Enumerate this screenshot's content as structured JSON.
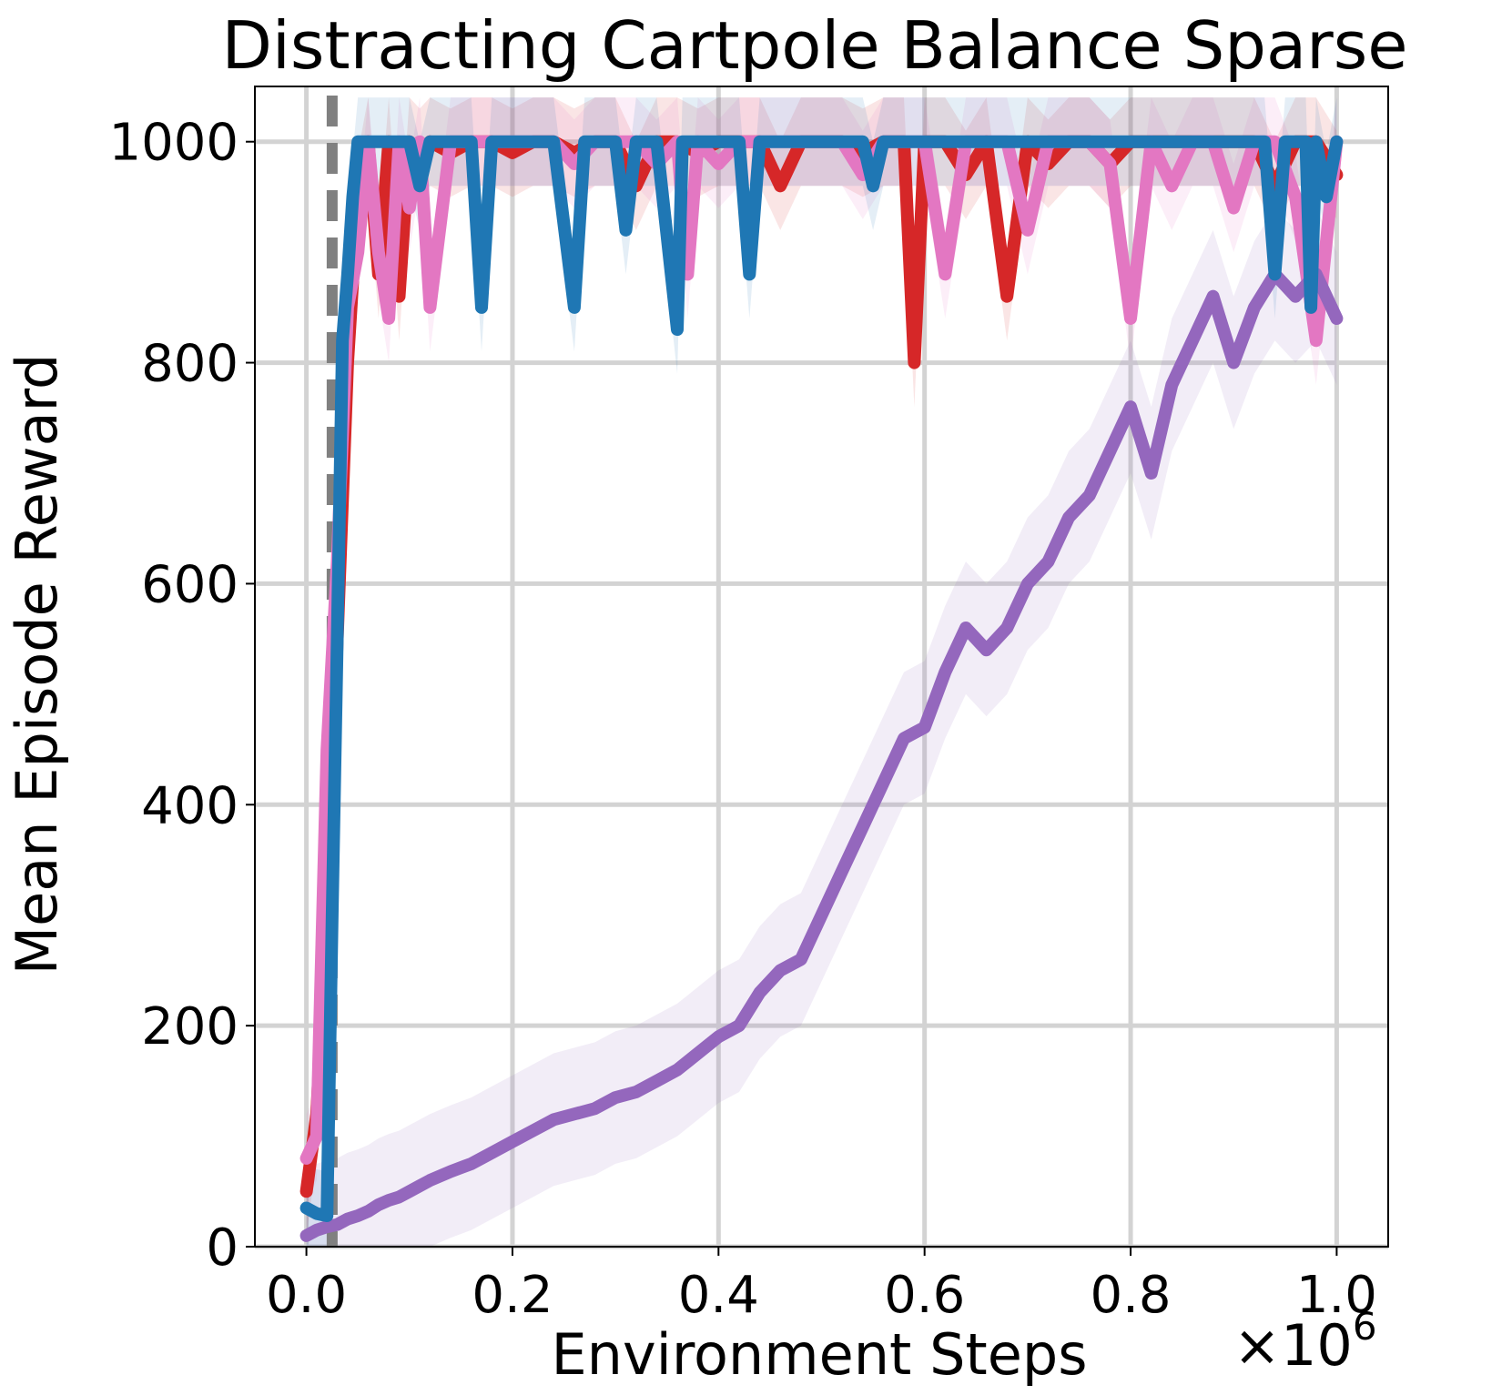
{
  "chart_data": {
    "type": "line",
    "title": "Distracting Cartpole Balance Sparse",
    "xlabel": "Environment Steps",
    "ylabel": "Mean Episode Reward",
    "x_multiplier_label": "×10",
    "x_multiplier_exponent": "6",
    "xlim": [
      -0.05,
      1.05
    ],
    "ylim": [
      0,
      1050
    ],
    "x_ticks": [
      0.0,
      0.2,
      0.4,
      0.6,
      0.8,
      1.0
    ],
    "x_tick_labels": [
      "0.0",
      "0.2",
      "0.4",
      "0.6",
      "0.8",
      "1.0"
    ],
    "y_ticks": [
      0,
      200,
      400,
      600,
      800,
      1000
    ],
    "y_tick_labels": [
      "0",
      "200",
      "400",
      "600",
      "800",
      "1000"
    ],
    "grid": true,
    "vline": {
      "x": 0.025,
      "style": "dashed",
      "color": "#808080"
    },
    "series": [
      {
        "color": "#d62728",
        "x": [
          0.0,
          0.01,
          0.02,
          0.03,
          0.04,
          0.05,
          0.06,
          0.07,
          0.08,
          0.09,
          0.1,
          0.11,
          0.12,
          0.14,
          0.16,
          0.18,
          0.2,
          0.22,
          0.24,
          0.26,
          0.28,
          0.3,
          0.32,
          0.34,
          0.36,
          0.38,
          0.4,
          0.42,
          0.44,
          0.46,
          0.48,
          0.5,
          0.52,
          0.54,
          0.56,
          0.58,
          0.59,
          0.6,
          0.62,
          0.64,
          0.66,
          0.68,
          0.7,
          0.72,
          0.74,
          0.76,
          0.78,
          0.8,
          0.82,
          0.84,
          0.86,
          0.88,
          0.9,
          0.92,
          0.94,
          0.96,
          0.98,
          1.0
        ],
        "y": [
          50,
          120,
          300,
          550,
          800,
          950,
          1000,
          880,
          1000,
          860,
          1000,
          990,
          1000,
          990,
          1000,
          1000,
          990,
          1000,
          1000,
          990,
          1000,
          1000,
          960,
          1000,
          1000,
          990,
          1000,
          1000,
          1000,
          960,
          1000,
          1000,
          1000,
          990,
          1000,
          1000,
          800,
          1000,
          1000,
          970,
          1000,
          860,
          1000,
          980,
          1000,
          1000,
          980,
          1000,
          1000,
          1000,
          1000,
          1000,
          1000,
          1000,
          960,
          1000,
          1000,
          970
        ]
      },
      {
        "color": "#e377c2",
        "x": [
          0.0,
          0.01,
          0.02,
          0.03,
          0.04,
          0.05,
          0.06,
          0.07,
          0.08,
          0.09,
          0.1,
          0.11,
          0.12,
          0.14,
          0.16,
          0.18,
          0.2,
          0.22,
          0.24,
          0.26,
          0.28,
          0.3,
          0.32,
          0.34,
          0.36,
          0.37,
          0.38,
          0.4,
          0.42,
          0.44,
          0.46,
          0.48,
          0.5,
          0.52,
          0.54,
          0.56,
          0.58,
          0.6,
          0.62,
          0.64,
          0.66,
          0.68,
          0.7,
          0.72,
          0.74,
          0.76,
          0.78,
          0.8,
          0.82,
          0.84,
          0.86,
          0.88,
          0.9,
          0.92,
          0.94,
          0.96,
          0.98,
          1.0
        ],
        "y": [
          80,
          100,
          450,
          620,
          850,
          900,
          1000,
          900,
          840,
          1000,
          940,
          1000,
          850,
          1000,
          1000,
          1000,
          1000,
          1000,
          1000,
          980,
          1000,
          1000,
          1000,
          980,
          1000,
          880,
          1000,
          980,
          1000,
          1000,
          1000,
          1000,
          1000,
          1000,
          970,
          1000,
          1000,
          1000,
          880,
          1000,
          1000,
          1000,
          920,
          1000,
          1000,
          1000,
          980,
          840,
          1000,
          960,
          1000,
          1000,
          940,
          1000,
          1000,
          950,
          820,
          1000
        ]
      },
      {
        "color": "#9467bd",
        "x": [
          0.0,
          0.01,
          0.02,
          0.03,
          0.04,
          0.05,
          0.06,
          0.07,
          0.08,
          0.09,
          0.1,
          0.11,
          0.12,
          0.14,
          0.16,
          0.18,
          0.2,
          0.22,
          0.24,
          0.26,
          0.28,
          0.3,
          0.32,
          0.34,
          0.36,
          0.38,
          0.4,
          0.42,
          0.44,
          0.46,
          0.48,
          0.5,
          0.52,
          0.54,
          0.56,
          0.58,
          0.6,
          0.62,
          0.64,
          0.66,
          0.68,
          0.7,
          0.72,
          0.74,
          0.76,
          0.78,
          0.8,
          0.82,
          0.84,
          0.86,
          0.88,
          0.9,
          0.92,
          0.94,
          0.96,
          0.98,
          1.0
        ],
        "y": [
          10,
          15,
          18,
          20,
          25,
          28,
          32,
          38,
          42,
          45,
          50,
          55,
          60,
          68,
          75,
          85,
          95,
          105,
          115,
          120,
          125,
          135,
          140,
          150,
          160,
          175,
          190,
          200,
          230,
          250,
          260,
          300,
          340,
          380,
          420,
          460,
          470,
          520,
          560,
          540,
          560,
          600,
          620,
          660,
          680,
          720,
          760,
          700,
          780,
          820,
          860,
          800,
          850,
          880,
          860,
          880,
          840
        ]
      },
      {
        "color": "#1f77b4",
        "x": [
          0.0,
          0.01,
          0.02,
          0.025,
          0.03,
          0.035,
          0.04,
          0.045,
          0.05,
          0.06,
          0.08,
          0.1,
          0.11,
          0.12,
          0.14,
          0.16,
          0.17,
          0.18,
          0.2,
          0.22,
          0.24,
          0.26,
          0.27,
          0.28,
          0.3,
          0.31,
          0.32,
          0.34,
          0.36,
          0.365,
          0.37,
          0.38,
          0.4,
          0.42,
          0.43,
          0.44,
          0.46,
          0.48,
          0.5,
          0.52,
          0.54,
          0.55,
          0.56,
          0.58,
          0.6,
          0.62,
          0.64,
          0.66,
          0.68,
          0.7,
          0.72,
          0.74,
          0.76,
          0.78,
          0.8,
          0.82,
          0.84,
          0.86,
          0.88,
          0.9,
          0.92,
          0.93,
          0.94,
          0.95,
          0.96,
          0.97,
          0.975,
          0.98,
          0.99,
          1.0
        ],
        "y": [
          35,
          30,
          28,
          300,
          550,
          820,
          880,
          950,
          1000,
          1000,
          1000,
          1000,
          960,
          1000,
          1000,
          1000,
          850,
          1000,
          1000,
          1000,
          1000,
          850,
          1000,
          1000,
          1000,
          920,
          1000,
          1000,
          830,
          1000,
          1000,
          1000,
          1000,
          1000,
          880,
          1000,
          1000,
          1000,
          1000,
          1000,
          1000,
          960,
          1000,
          1000,
          1000,
          1000,
          1000,
          1000,
          1000,
          1000,
          1000,
          1000,
          1000,
          1000,
          1000,
          1000,
          1000,
          1000,
          1000,
          1000,
          1000,
          1000,
          880,
          1000,
          1000,
          1000,
          850,
          1000,
          950,
          1000
        ]
      }
    ]
  }
}
